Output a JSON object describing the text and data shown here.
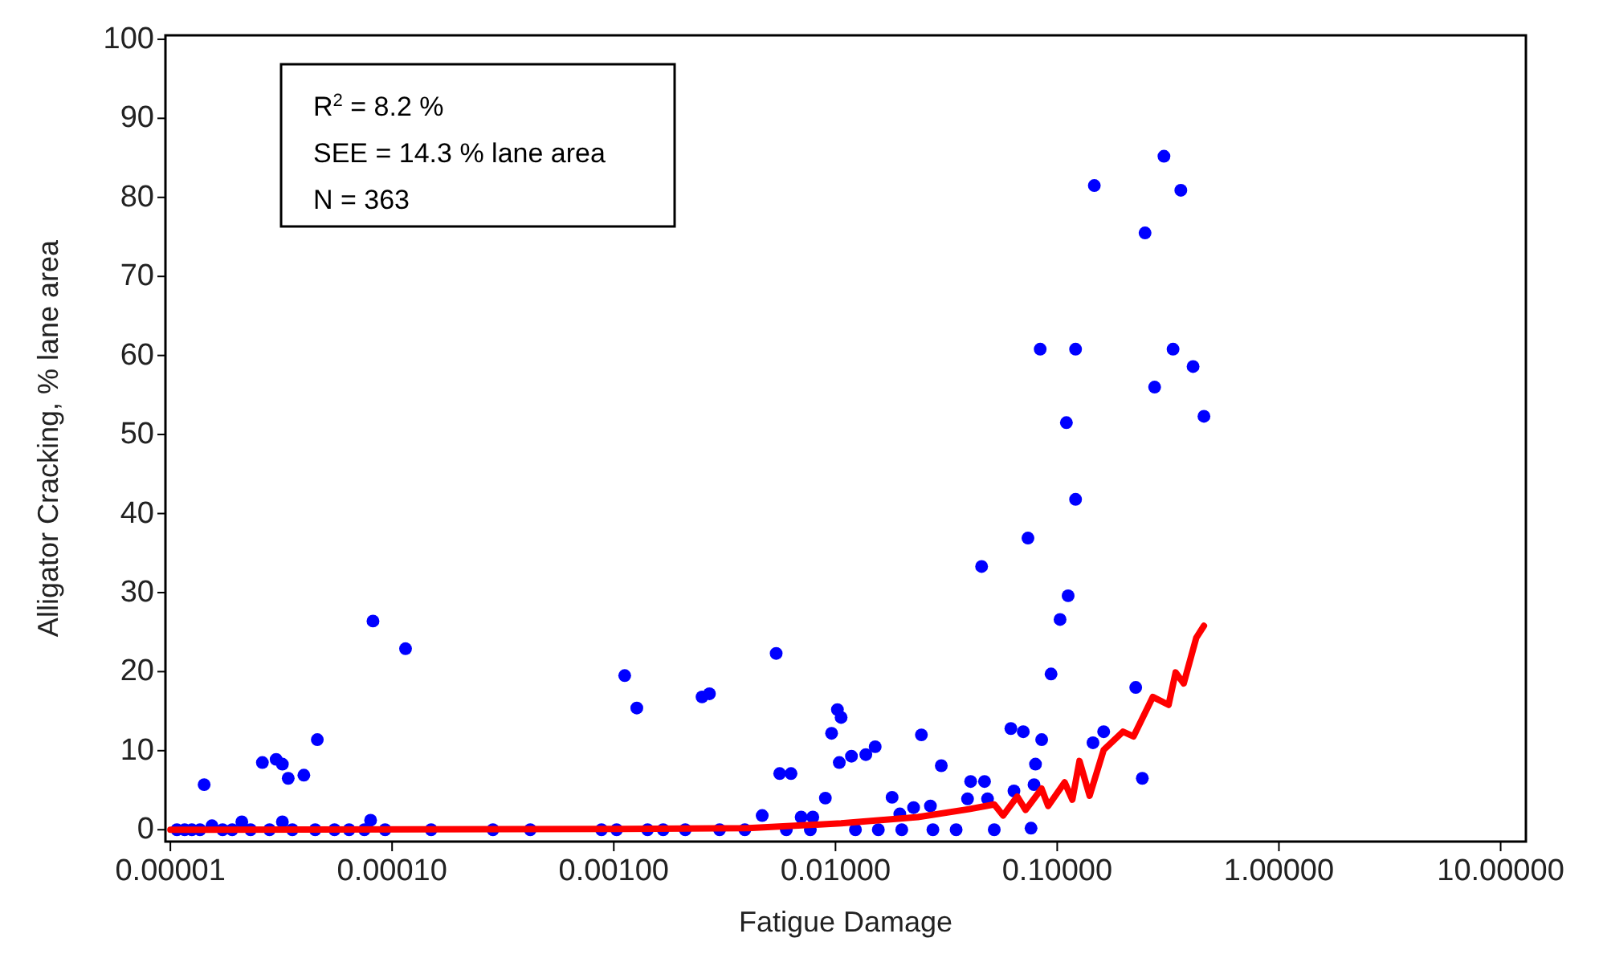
{
  "chart_data": {
    "type": "scatter",
    "xlabel": "Fatigue Damage",
    "ylabel": "Alligator Cracking, % lane area",
    "log": "x",
    "xlim": [
      9.5e-06,
      13
    ],
    "ylim": [
      -1.5,
      100.5
    ],
    "xticks": [
      {
        "value": 1e-05,
        "label": "0.00001"
      },
      {
        "value": 0.0001,
        "label": "0.00010"
      },
      {
        "value": 0.001,
        "label": "0.00100"
      },
      {
        "value": 0.01,
        "label": "0.01000"
      },
      {
        "value": 0.1,
        "label": "0.10000"
      },
      {
        "value": 1,
        "label": "1.00000"
      },
      {
        "value": 10,
        "label": "10.00000"
      }
    ],
    "yticks": [
      0,
      10,
      20,
      30,
      40,
      50,
      60,
      70,
      80,
      90,
      100
    ],
    "grid": false,
    "marker": "circle",
    "annotations": [
      "R$^{2}$ = 8.2 %",
      "SEE = 14.3 % lane area",
      "N = 363"
    ],
    "series": [
      {
        "color": "#0000ff",
        "x": [
          1.42e-05,
          2.1e-05,
          2.6e-05,
          3e-05,
          3.2e-05,
          3.2e-05,
          3.4e-05,
          4e-05,
          4.6e-05,
          8e-05,
          8.2e-05,
          0.000115,
          0.00112,
          0.00127,
          0.0025,
          0.0027,
          0.00467,
          0.0054,
          0.0056,
          0.0063,
          0.007,
          0.0079,
          0.009,
          0.0096,
          0.0102,
          0.0104,
          0.0106,
          0.0118,
          0.0137,
          0.0151,
          0.018,
          0.0195,
          0.0225,
          0.0244,
          0.0268,
          0.03,
          0.0394,
          0.0407,
          0.0456,
          0.047,
          0.0485,
          0.0618,
          0.0638,
          0.0703,
          0.0738,
          0.0762,
          0.0786,
          0.0798,
          0.0838,
          0.0851,
          0.0938,
          0.103,
          0.11,
          0.112,
          0.121,
          0.121,
          0.145,
          0.147,
          0.162,
          0.226,
          0.242,
          0.249,
          0.275,
          0.303,
          0.333,
          0.361,
          0.41,
          0.459,
          1.07e-05,
          1.16e-05,
          1.25e-05,
          1.36e-05,
          1.54e-05,
          1.72e-05,
          1.9e-05,
          2.3e-05,
          2.8e-05,
          3.55e-05,
          4.5e-05,
          5.5e-05,
          6.4e-05,
          7.5e-05,
          9.3e-05,
          0.00015,
          0.000285,
          0.00042,
          0.00088,
          0.00103,
          0.00142,
          0.00167,
          0.0021,
          0.003,
          0.0039,
          0.006,
          0.0077,
          0.0123,
          0.0156,
          0.0199,
          0.0275,
          0.035,
          0.052
        ],
        "values": [
          5.7,
          1,
          8.5,
          8.9,
          1,
          8.3,
          6.5,
          6.9,
          11.4,
          1.2,
          26.4,
          22.9,
          19.5,
          15.4,
          16.8,
          17.2,
          1.8,
          22.3,
          7.1,
          7.1,
          1.6,
          1.6,
          4,
          12.2,
          15.2,
          8.5,
          14.2,
          9.3,
          9.5,
          10.5,
          4.1,
          2,
          2.8,
          12,
          3,
          8.1,
          3.9,
          6.1,
          33.3,
          6.1,
          3.9,
          12.8,
          4.9,
          12.4,
          36.9,
          0.2,
          5.7,
          8.3,
          60.8,
          11.4,
          19.7,
          26.6,
          51.5,
          29.6,
          41.8,
          60.8,
          11,
          81.5,
          12.4,
          18,
          6.5,
          75.5,
          56,
          85.2,
          60.8,
          80.9,
          58.6,
          52.3,
          0,
          0,
          0,
          0,
          0.5,
          0,
          0,
          0,
          0,
          0,
          0,
          0,
          0,
          0,
          0,
          0,
          0,
          0,
          0,
          0,
          0,
          0,
          0,
          0,
          0,
          0,
          0,
          0,
          0,
          0,
          0,
          0,
          0
        ]
      },
      {
        "type": "line",
        "color": "#ff0000",
        "marker": "none",
        "x": [
          1e-05,
          0.0011,
          0.00404,
          0.0106,
          0.0235,
          0.04,
          0.052,
          0.057,
          0.066,
          0.072,
          0.085,
          0.091,
          0.108,
          0.117,
          0.126,
          0.14,
          0.162,
          0.198,
          0.221,
          0.27,
          0.318,
          0.342,
          0.372,
          0.424,
          0.459
        ],
        "values": [
          0,
          0.1,
          0.2,
          0.8,
          1.6,
          2.6,
          3.2,
          1.8,
          4.2,
          2.5,
          5.2,
          3,
          6,
          3.8,
          8.7,
          4.3,
          10.1,
          12.4,
          11.8,
          16.8,
          15.8,
          19.9,
          18.5,
          24.3,
          25.8
        ]
      }
    ]
  }
}
